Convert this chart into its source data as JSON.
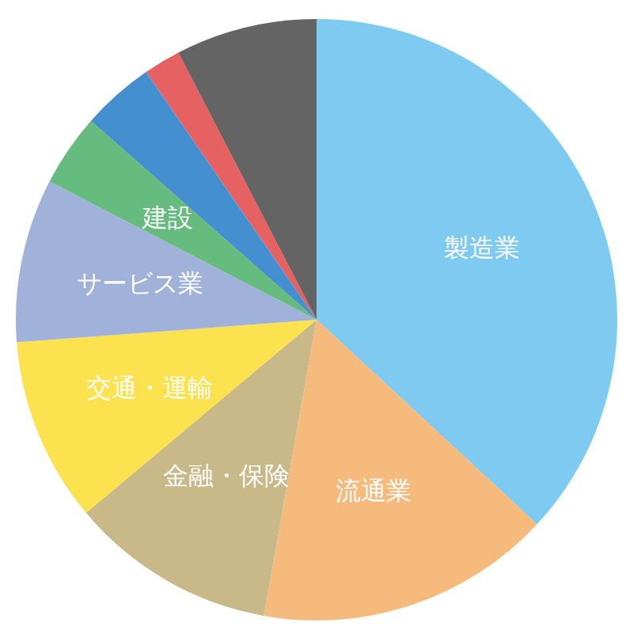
{
  "chart_data": {
    "type": "pie",
    "categories": [
      "製造業",
      "流通業",
      "金融・保険",
      "交通・運輸",
      "サービス業",
      "建設",
      null,
      null,
      null
    ],
    "values": [
      36.9,
      15.9,
      11.1,
      9.9,
      8.8,
      3.9,
      3.9,
      2.0,
      7.6
    ],
    "colors": [
      "#7ecaf1",
      "#f6ba7c",
      "#c9b988",
      "#fde24f",
      "#a1b2da",
      "#66bc7f",
      "#448fcf",
      "#e66262",
      "#646464"
    ]
  }
}
